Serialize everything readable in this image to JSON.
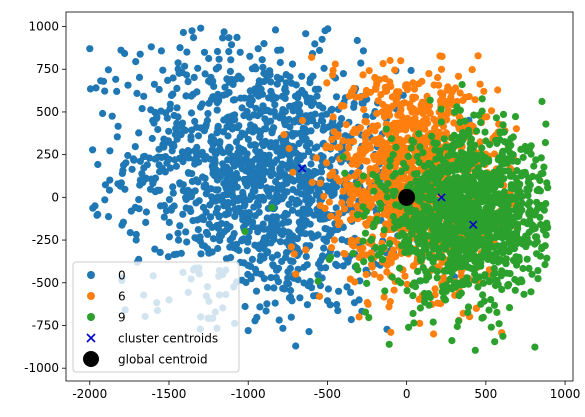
{
  "chart_data": {
    "type": "scatter",
    "title": "",
    "xlabel": "",
    "ylabel": "",
    "xlim": [
      -2150,
      1050
    ],
    "ylim": [
      -1075,
      1085
    ],
    "xticks": [
      -2000,
      -1500,
      -1000,
      -500,
      0,
      500,
      1000
    ],
    "yticks": [
      -1000,
      -750,
      -500,
      -250,
      0,
      250,
      500,
      750,
      1000
    ],
    "legend_position": "lower-left",
    "grid": false,
    "series": [
      {
        "name": "0",
        "color": "#1f77b4",
        "point_count": 1400,
        "x_range": [
          -2000,
          430
        ],
        "y_range": [
          -900,
          990
        ],
        "representative_points": [
          [
            -2000,
            870
          ],
          [
            -1300,
            990
          ],
          [
            -1830,
            620
          ],
          [
            -1950,
            -100
          ],
          [
            -1700,
            -380
          ],
          [
            -1500,
            -600
          ],
          [
            -1300,
            -700
          ],
          [
            -1000,
            -780
          ],
          [
            -700,
            -870
          ],
          [
            -650,
            170
          ],
          [
            -1100,
            400
          ],
          [
            -900,
            -300
          ],
          [
            -300,
            -600
          ],
          [
            -900,
            900
          ],
          [
            -550,
            860
          ]
        ]
      },
      {
        "name": "6",
        "color": "#ff7f0e",
        "point_count": 1200,
        "x_range": [
          -800,
          700
        ],
        "y_range": [
          -850,
          830
        ],
        "representative_points": [
          [
            -600,
            820
          ],
          [
            -450,
            780
          ],
          [
            -200,
            700
          ],
          [
            40,
            670
          ],
          [
            250,
            540
          ],
          [
            470,
            490
          ],
          [
            620,
            390
          ],
          [
            -700,
            -450
          ],
          [
            -550,
            -580
          ],
          [
            -300,
            -700
          ],
          [
            -100,
            -790
          ],
          [
            170,
            -800
          ],
          [
            330,
            -720
          ],
          [
            440,
            -650
          ],
          [
            -30,
            10
          ]
        ]
      },
      {
        "name": "9",
        "color": "#2ca02c",
        "point_count": 1300,
        "x_range": [
          -1000,
          900
        ],
        "y_range": [
          -900,
          660
        ],
        "representative_points": [
          [
            350,
            660
          ],
          [
            500,
            330
          ],
          [
            640,
            280
          ],
          [
            700,
            210
          ],
          [
            860,
            140
          ],
          [
            880,
            -220
          ],
          [
            820,
            -330
          ],
          [
            600,
            -430
          ],
          [
            520,
            -660
          ],
          [
            -1020,
            -200
          ],
          [
            -850,
            -60
          ],
          [
            -480,
            -350
          ],
          [
            -110,
            -860
          ],
          [
            40,
            -680
          ],
          [
            250,
            -430
          ]
        ]
      }
    ],
    "cluster_centroids": {
      "label": "cluster centroids",
      "color": "#0000cc",
      "marker": "x",
      "points": [
        [
          -660,
          170
        ],
        [
          220,
          0
        ],
        [
          420,
          -160
        ]
      ]
    },
    "global_centroid": {
      "label": "global centroid",
      "color": "#000000",
      "marker": "o",
      "points": [
        [
          0,
          0
        ]
      ]
    }
  }
}
